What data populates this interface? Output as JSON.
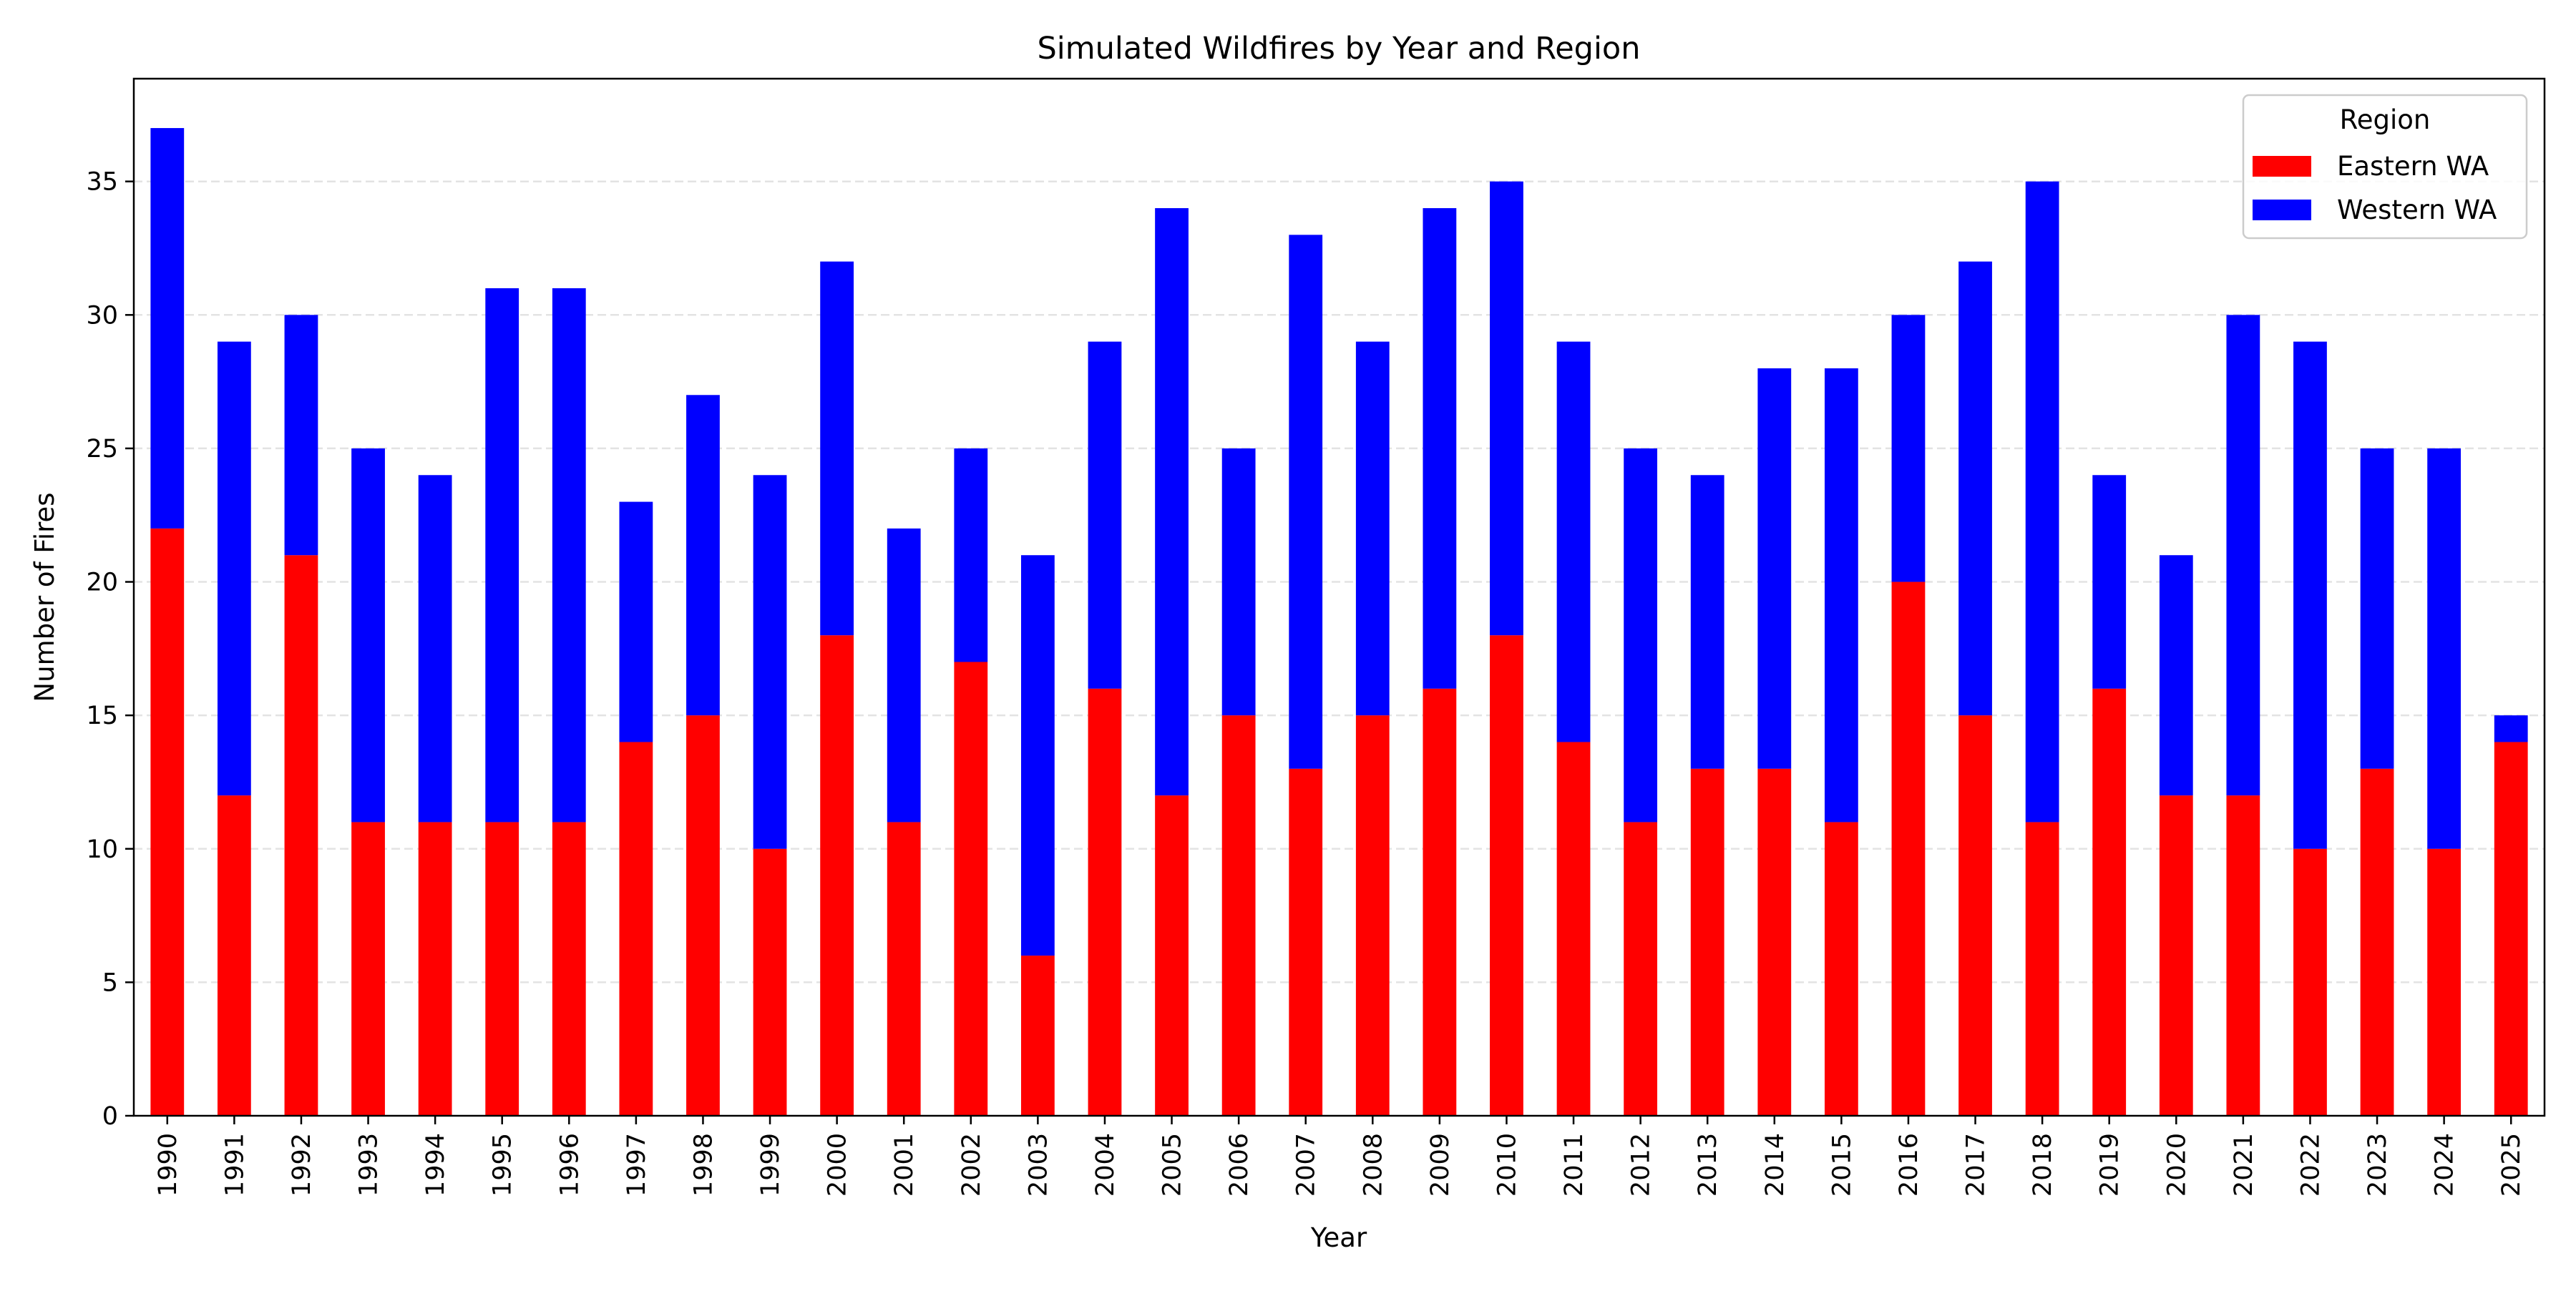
{
  "chart_data": {
    "type": "bar",
    "stacked": true,
    "title": "Simulated Wildfires by Year and Region",
    "xlabel": "Year",
    "ylabel": "Number of Fires",
    "ylim": [
      0,
      38.85
    ],
    "yticks": [
      0,
      5,
      10,
      15,
      20,
      25,
      30,
      35
    ],
    "grid": "horizontal dashed",
    "legend": {
      "title": "Region",
      "placement": "top-right"
    },
    "categories": [
      "1990",
      "1991",
      "1992",
      "1993",
      "1994",
      "1995",
      "1996",
      "1997",
      "1998",
      "1999",
      "2000",
      "2001",
      "2002",
      "2003",
      "2004",
      "2005",
      "2006",
      "2007",
      "2008",
      "2009",
      "2010",
      "2011",
      "2012",
      "2013",
      "2014",
      "2015",
      "2016",
      "2017",
      "2018",
      "2019",
      "2020",
      "2021",
      "2022",
      "2023",
      "2024",
      "2025"
    ],
    "series": [
      {
        "name": "Eastern WA",
        "color": "#ff0000",
        "values": [
          22,
          12,
          21,
          11,
          11,
          11,
          11,
          14,
          15,
          10,
          18,
          11,
          17,
          6,
          16,
          12,
          15,
          13,
          15,
          16,
          18,
          14,
          11,
          13,
          13,
          11,
          20,
          15,
          11,
          16,
          12,
          12,
          10,
          13,
          10,
          14
        ]
      },
      {
        "name": "Western WA",
        "color": "#0000ff",
        "values": [
          15,
          17,
          9,
          14,
          13,
          20,
          20,
          9,
          12,
          14,
          14,
          11,
          8,
          15,
          13,
          22,
          10,
          20,
          14,
          18,
          17,
          15,
          14,
          11,
          15,
          17,
          10,
          17,
          24,
          8,
          9,
          18,
          19,
          12,
          15,
          1
        ]
      }
    ]
  }
}
